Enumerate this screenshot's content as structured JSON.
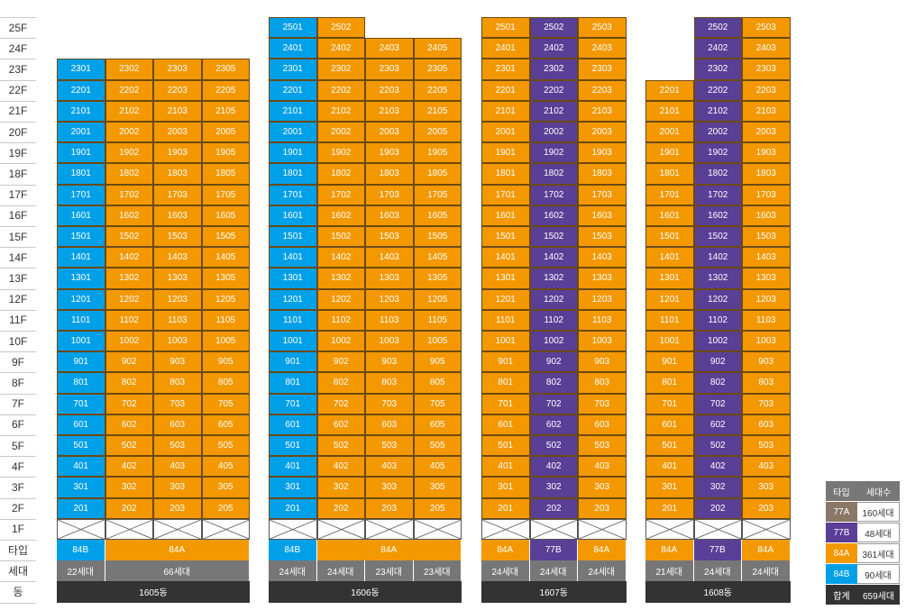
{
  "colors": {
    "84A": "#f39800",
    "84B": "#00a0e9",
    "77B": "#5a3f97",
    "77A": "#8a7866",
    "household_bg": "#777777",
    "dong_bg": "#333333"
  },
  "row_labels": {
    "pilotis": "1F",
    "type": "타입",
    "households": "세대",
    "dong": "동"
  },
  "floors": [
    "25F",
    "24F",
    "23F",
    "22F",
    "21F",
    "20F",
    "19F",
    "18F",
    "17F",
    "16F",
    "15F",
    "14F",
    "13F",
    "12F",
    "11F",
    "10F",
    "9F",
    "8F",
    "7F",
    "6F",
    "5F",
    "4F",
    "3F",
    "2F"
  ],
  "buildings": [
    {
      "dong": "1605동",
      "lines": [
        {
          "suffix": "01",
          "type": "84B",
          "top_floor": 23,
          "households": "22세대"
        },
        {
          "suffix": "02",
          "type": "84A",
          "top_floor": 23
        },
        {
          "suffix": "03",
          "type": "84A",
          "top_floor": 23
        },
        {
          "suffix": "05",
          "type": "84A",
          "top_floor": 23
        }
      ],
      "type_groups": [
        {
          "type": "84B",
          "span": 1
        },
        {
          "type": "84A",
          "span": 3
        }
      ],
      "household_groups": [
        {
          "label": "22세대",
          "span": 1
        },
        {
          "label": "66세대",
          "span": 3
        }
      ]
    },
    {
      "dong": "1606동",
      "lines": [
        {
          "suffix": "01",
          "type": "84B",
          "top_floor": 25
        },
        {
          "suffix": "02",
          "type": "84A",
          "top_floor": 25
        },
        {
          "suffix": "03",
          "type": "84A",
          "top_floor": 24
        },
        {
          "suffix": "05",
          "type": "84A",
          "top_floor": 24
        }
      ],
      "type_groups": [
        {
          "type": "84B",
          "span": 1
        },
        {
          "type": "84A",
          "span": 3
        }
      ],
      "household_groups": [
        {
          "label": "24세대",
          "span": 1
        },
        {
          "label": "24세대",
          "span": 1
        },
        {
          "label": "23세대",
          "span": 1
        },
        {
          "label": "23세대",
          "span": 1
        }
      ]
    },
    {
      "dong": "1607동",
      "lines": [
        {
          "suffix": "01",
          "type": "84A",
          "top_floor": 25
        },
        {
          "suffix": "02",
          "type": "77B",
          "top_floor": 25
        },
        {
          "suffix": "03",
          "type": "84A",
          "top_floor": 25
        }
      ],
      "type_groups": [
        {
          "type": "84A",
          "span": 1
        },
        {
          "type": "77B",
          "span": 1
        },
        {
          "type": "84A",
          "span": 1
        }
      ],
      "household_groups": [
        {
          "label": "24세대",
          "span": 1
        },
        {
          "label": "24세대",
          "span": 1
        },
        {
          "label": "24세대",
          "span": 1
        }
      ]
    },
    {
      "dong": "1608동",
      "lines": [
        {
          "suffix": "01",
          "type": "84A",
          "top_floor": 22
        },
        {
          "suffix": "02",
          "type": "77B",
          "top_floor": 25
        },
        {
          "suffix": "03",
          "type": "84A",
          "top_floor": 25
        }
      ],
      "type_groups": [
        {
          "type": "84A",
          "span": 1
        },
        {
          "type": "77B",
          "span": 1
        },
        {
          "type": "84A",
          "span": 1
        }
      ],
      "household_groups": [
        {
          "label": "21세대",
          "span": 1
        },
        {
          "label": "24세대",
          "span": 1
        },
        {
          "label": "24세대",
          "span": 1
        }
      ]
    }
  ],
  "legend": {
    "header": {
      "type": "타입",
      "count": "세대수"
    },
    "rows": [
      {
        "type": "77A",
        "count": "160세대"
      },
      {
        "type": "77B",
        "count": "48세대"
      },
      {
        "type": "84A",
        "count": "361세대"
      },
      {
        "type": "84B",
        "count": "90세대"
      }
    ],
    "total": {
      "label": "합계",
      "count": "659세대"
    }
  }
}
